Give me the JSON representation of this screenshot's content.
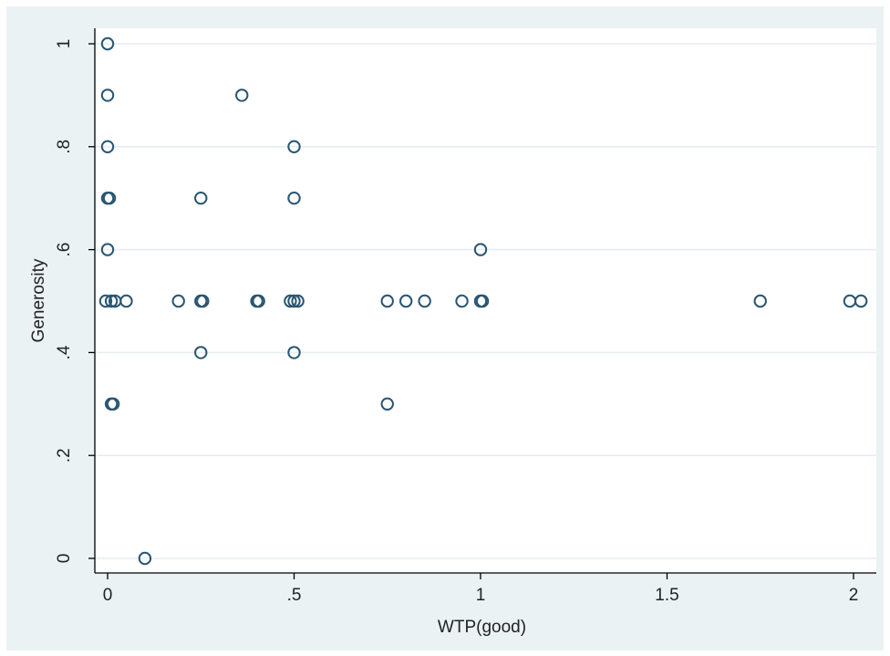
{
  "chart_data": {
    "type": "scatter",
    "xlabel": "WTP(good)",
    "ylabel": "Generosity",
    "xlim": [
      -0.03,
      2.05
    ],
    "ylim": [
      -0.03,
      1.03
    ],
    "x_ticks": [
      0,
      0.5,
      1,
      1.5,
      2
    ],
    "x_tick_labels": [
      "0",
      ".5",
      "1",
      "1.5",
      "2"
    ],
    "y_ticks": [
      0,
      0.2,
      0.4,
      0.6,
      0.8,
      1
    ],
    "y_tick_labels": [
      "0",
      ".2",
      ".4",
      ".6",
      ".8",
      "1"
    ],
    "grid": true,
    "colors": {
      "marker": "#2a5673",
      "grid": "#e6eef0",
      "background": "#eaf2f3",
      "plot_area": "#ffffff"
    },
    "points": [
      {
        "x": 0,
        "y": 1
      },
      {
        "x": 0,
        "y": 0.9
      },
      {
        "x": 0,
        "y": 0.8
      },
      {
        "x": 0,
        "y": 0.7
      },
      {
        "x": 0.005,
        "y": 0.7
      },
      {
        "x": 0,
        "y": 0.6
      },
      {
        "x": -0.005,
        "y": 0.5
      },
      {
        "x": 0.01,
        "y": 0.5
      },
      {
        "x": 0.02,
        "y": 0.5
      },
      {
        "x": 0.05,
        "y": 0.5
      },
      {
        "x": 0.01,
        "y": 0.3
      },
      {
        "x": 0.015,
        "y": 0.3
      },
      {
        "x": 0.1,
        "y": 0
      },
      {
        "x": 0.19,
        "y": 0.5
      },
      {
        "x": 0.25,
        "y": 0.7
      },
      {
        "x": 0.25,
        "y": 0.5
      },
      {
        "x": 0.255,
        "y": 0.5
      },
      {
        "x": 0.25,
        "y": 0.4
      },
      {
        "x": 0.36,
        "y": 0.9
      },
      {
        "x": 0.4,
        "y": 0.5
      },
      {
        "x": 0.405,
        "y": 0.5
      },
      {
        "x": 0.5,
        "y": 0.8
      },
      {
        "x": 0.5,
        "y": 0.7
      },
      {
        "x": 0.49,
        "y": 0.5
      },
      {
        "x": 0.5,
        "y": 0.5
      },
      {
        "x": 0.51,
        "y": 0.5
      },
      {
        "x": 0.5,
        "y": 0.4
      },
      {
        "x": 0.75,
        "y": 0.5
      },
      {
        "x": 0.75,
        "y": 0.3
      },
      {
        "x": 0.8,
        "y": 0.5
      },
      {
        "x": 0.85,
        "y": 0.5
      },
      {
        "x": 0.95,
        "y": 0.5
      },
      {
        "x": 1,
        "y": 0.6
      },
      {
        "x": 1,
        "y": 0.5
      },
      {
        "x": 1.005,
        "y": 0.5
      },
      {
        "x": 1.75,
        "y": 0.5
      },
      {
        "x": 1.99,
        "y": 0.5
      },
      {
        "x": 2.02,
        "y": 0.5
      }
    ]
  }
}
